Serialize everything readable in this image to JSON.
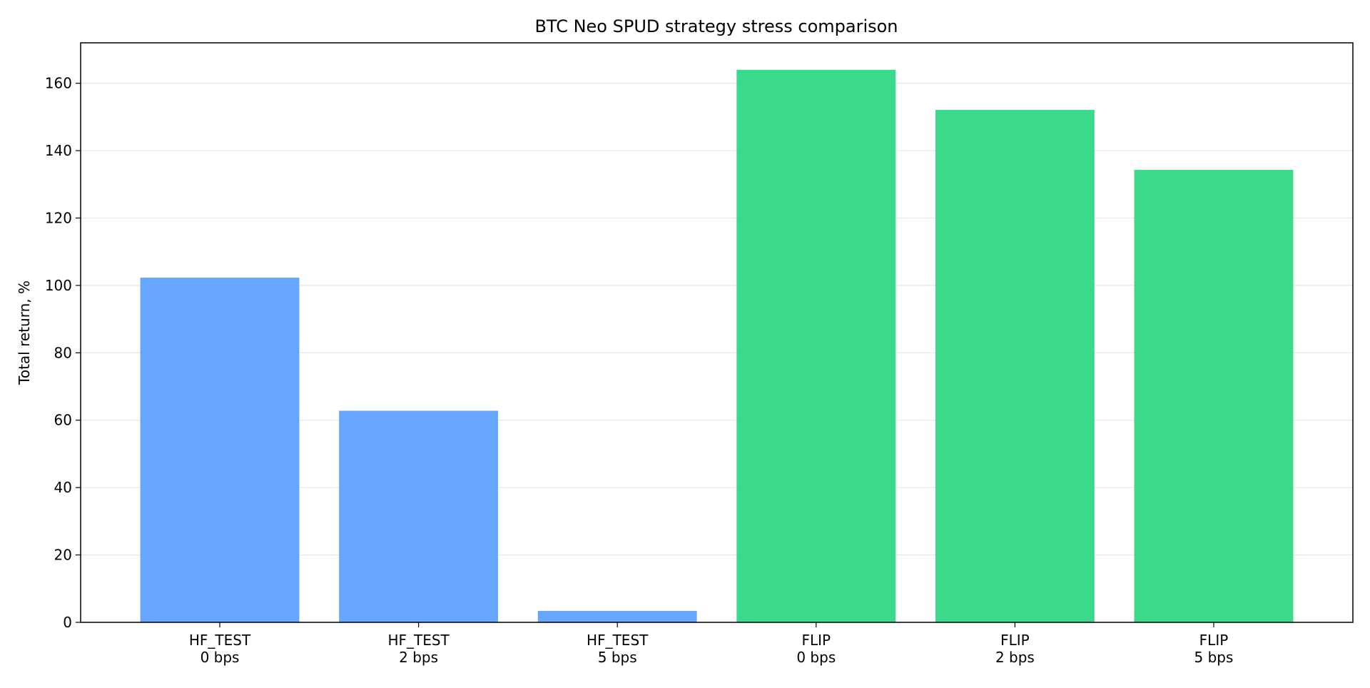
{
  "chart_data": {
    "type": "bar",
    "title": "BTC Neo SPUD strategy stress comparison",
    "xlabel": "",
    "ylabel": "Total return, %",
    "categories": [
      [
        "HF_TEST",
        "0 bps"
      ],
      [
        "HF_TEST",
        "2 bps"
      ],
      [
        "HF_TEST",
        "5 bps"
      ],
      [
        "FLIP",
        "0 bps"
      ],
      [
        "FLIP",
        "2 bps"
      ],
      [
        "FLIP",
        "5 bps"
      ]
    ],
    "values": [
      102.3,
      62.8,
      3.4,
      164.0,
      152.1,
      134.3
    ],
    "bar_colors": [
      "#66a6ff",
      "#66a6ff",
      "#66a6ff",
      "#3bd98b",
      "#3bd98b",
      "#3bd98b"
    ],
    "ylim": [
      0,
      172
    ],
    "yticks": [
      0,
      20,
      40,
      60,
      80,
      100,
      120,
      140,
      160
    ],
    "grid": "horizontal",
    "legend": "none"
  }
}
